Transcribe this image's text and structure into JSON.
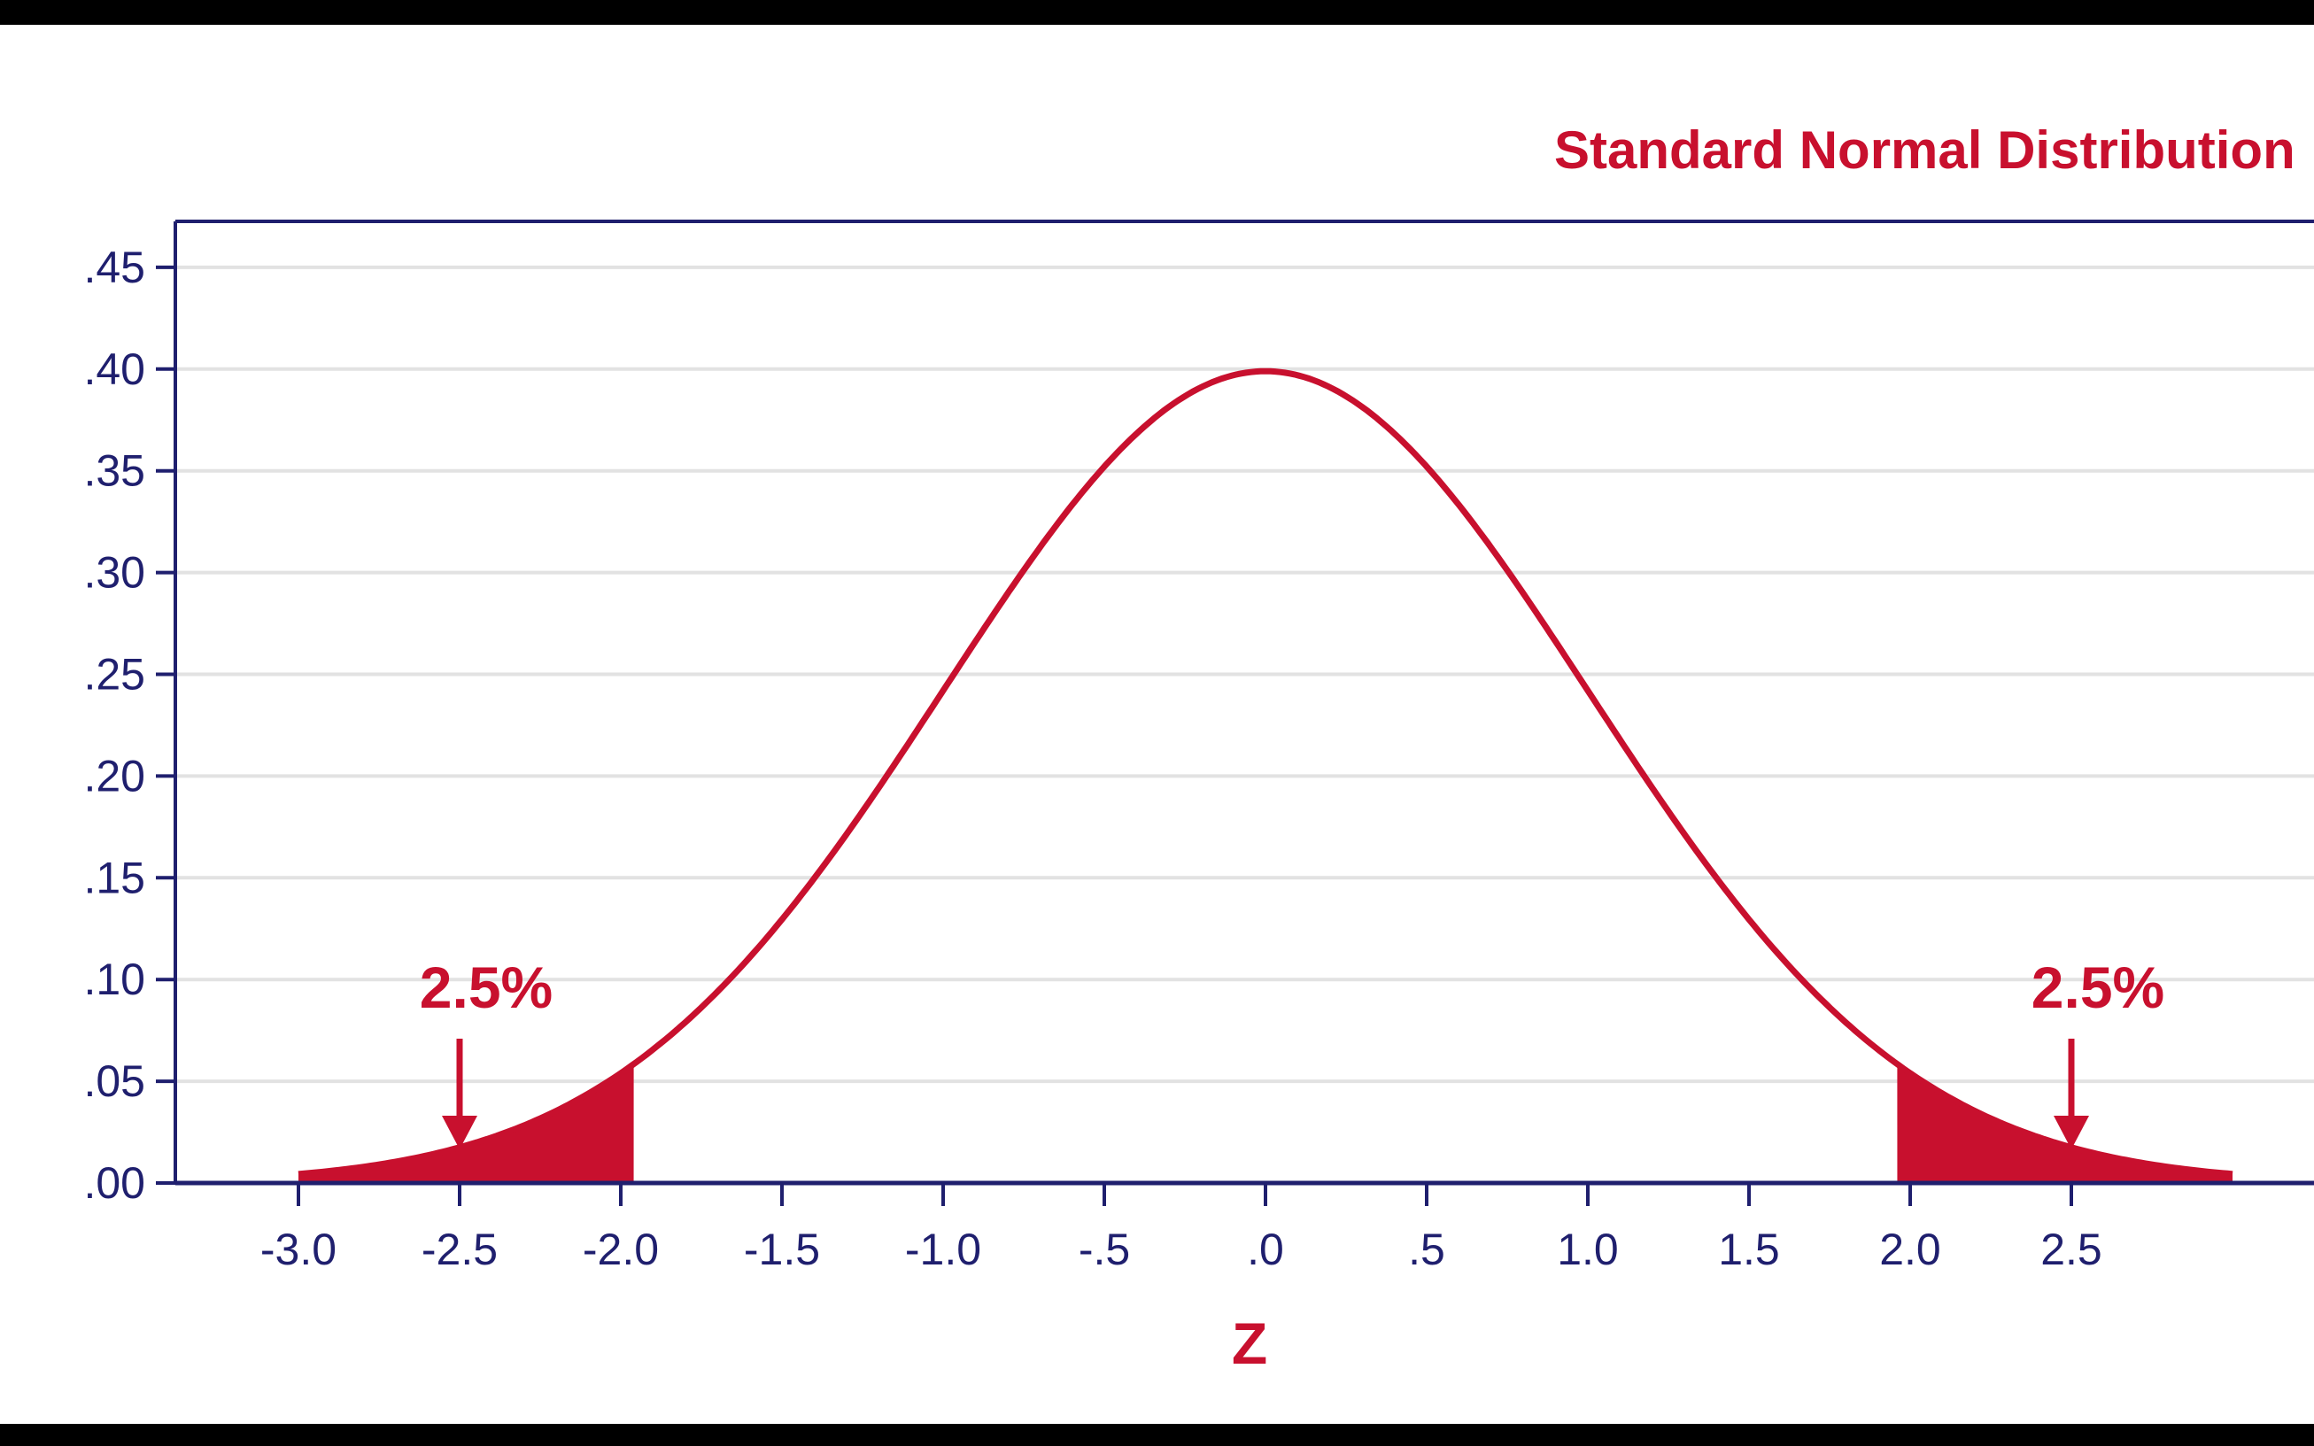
{
  "chart_data": {
    "type": "area",
    "title": "Standard Normal Distribution",
    "xlabel": "Z",
    "ylabel": "",
    "xlim": [
      -3.4,
      3.3
    ],
    "ylim": [
      0,
      0.47
    ],
    "curve": {
      "function": "standard-normal-pdf",
      "x_range": [
        -3.0,
        3.0
      ]
    },
    "shaded_tails": [
      {
        "from": -3.0,
        "to": -1.96,
        "label": "2.5%"
      },
      {
        "from": 1.96,
        "to": 3.0,
        "label": "2.5%"
      }
    ],
    "annotations": [
      {
        "text": "2.5%",
        "arrow_to_x": -2.5
      },
      {
        "text": "2.5%",
        "arrow_to_x": 2.5
      }
    ],
    "x_ticks": [
      {
        "value": -3.0,
        "label": "-3.0"
      },
      {
        "value": -2.5,
        "label": "-2.5"
      },
      {
        "value": -2.0,
        "label": "-2.0"
      },
      {
        "value": -1.5,
        "label": "-1.5"
      },
      {
        "value": -1.0,
        "label": "-1.0"
      },
      {
        "value": -0.5,
        "label": "-.5"
      },
      {
        "value": 0.0,
        "label": ".0"
      },
      {
        "value": 0.5,
        "label": ".5"
      },
      {
        "value": 1.0,
        "label": "1.0"
      },
      {
        "value": 1.5,
        "label": "1.5"
      },
      {
        "value": 2.0,
        "label": "2.0"
      },
      {
        "value": 2.5,
        "label": "2.5"
      }
    ],
    "y_ticks": [
      {
        "value": 0.0,
        "label": ".00"
      },
      {
        "value": 0.05,
        "label": ".05"
      },
      {
        "value": 0.1,
        "label": ".10"
      },
      {
        "value": 0.15,
        "label": ".15"
      },
      {
        "value": 0.2,
        "label": ".20"
      },
      {
        "value": 0.25,
        "label": ".25"
      },
      {
        "value": 0.3,
        "label": ".30"
      },
      {
        "value": 0.35,
        "label": ".35"
      },
      {
        "value": 0.4,
        "label": ".40"
      },
      {
        "value": 0.45,
        "label": ".45"
      }
    ],
    "grid": true,
    "colors": {
      "curve": "#c8102e",
      "fill": "#c8102e",
      "axis": "#1f1f6e",
      "grid": "#e2e2e2",
      "title": "#c8102e"
    }
  }
}
